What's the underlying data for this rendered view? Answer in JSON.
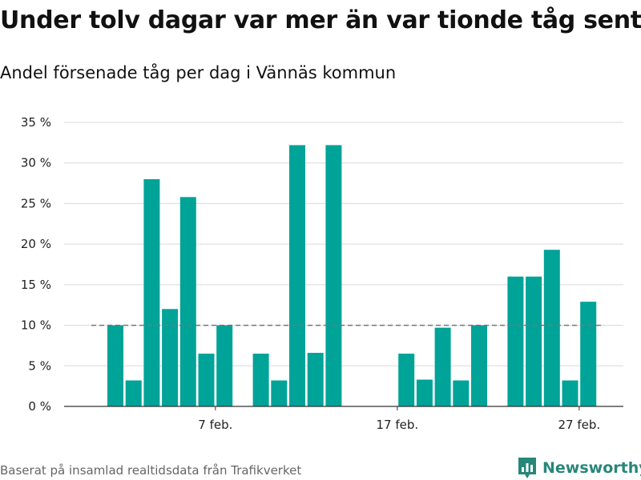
{
  "title": "Under tolv dagar var mer än var tionde tåg sent",
  "subtitle": "Andel försenade tåg per dag i Vännäs kommun",
  "source": "Baserat på insamlad realtidsdata från Trafikverket",
  "brand": "Newsworthy",
  "colors": {
    "bar": "#00a398",
    "grid": "#d9d9d9",
    "reference": "#777777",
    "brand": "#27877a"
  },
  "chart_data": {
    "type": "bar",
    "x": [
      "2 feb.",
      "3 feb.",
      "4 feb.",
      "5 feb.",
      "6 feb.",
      "7 feb.",
      "8 feb.",
      "9 feb.",
      "10 feb.",
      "11 feb.",
      "12 feb.",
      "13 feb.",
      "14 feb.",
      "15 feb.",
      "16 feb.",
      "17 feb.",
      "18 feb.",
      "19 feb.",
      "20 feb.",
      "21 feb.",
      "22 feb.",
      "23 feb.",
      "24 feb.",
      "25 feb.",
      "26 feb.",
      "27 feb.",
      "28 feb."
    ],
    "values": [
      10,
      3.2,
      28,
      12,
      25.8,
      6.5,
      10,
      null,
      6.5,
      3.2,
      32.2,
      6.6,
      32.2,
      null,
      null,
      null,
      6.5,
      3.3,
      9.7,
      3.2,
      10,
      null,
      16,
      16,
      19.3,
      3.2,
      12.9
    ],
    "ylim": [
      0,
      35
    ],
    "yticks": [
      0,
      5,
      10,
      15,
      20,
      25,
      30,
      35
    ],
    "ytick_labels": [
      "0 %",
      "5 %",
      "10 %",
      "15 %",
      "20 %",
      "25 %",
      "30 %",
      "35 %"
    ],
    "xticks": [
      "7 feb.",
      "17 feb.",
      "27 feb."
    ],
    "reference_line": 10,
    "grid": true,
    "legend": false
  }
}
